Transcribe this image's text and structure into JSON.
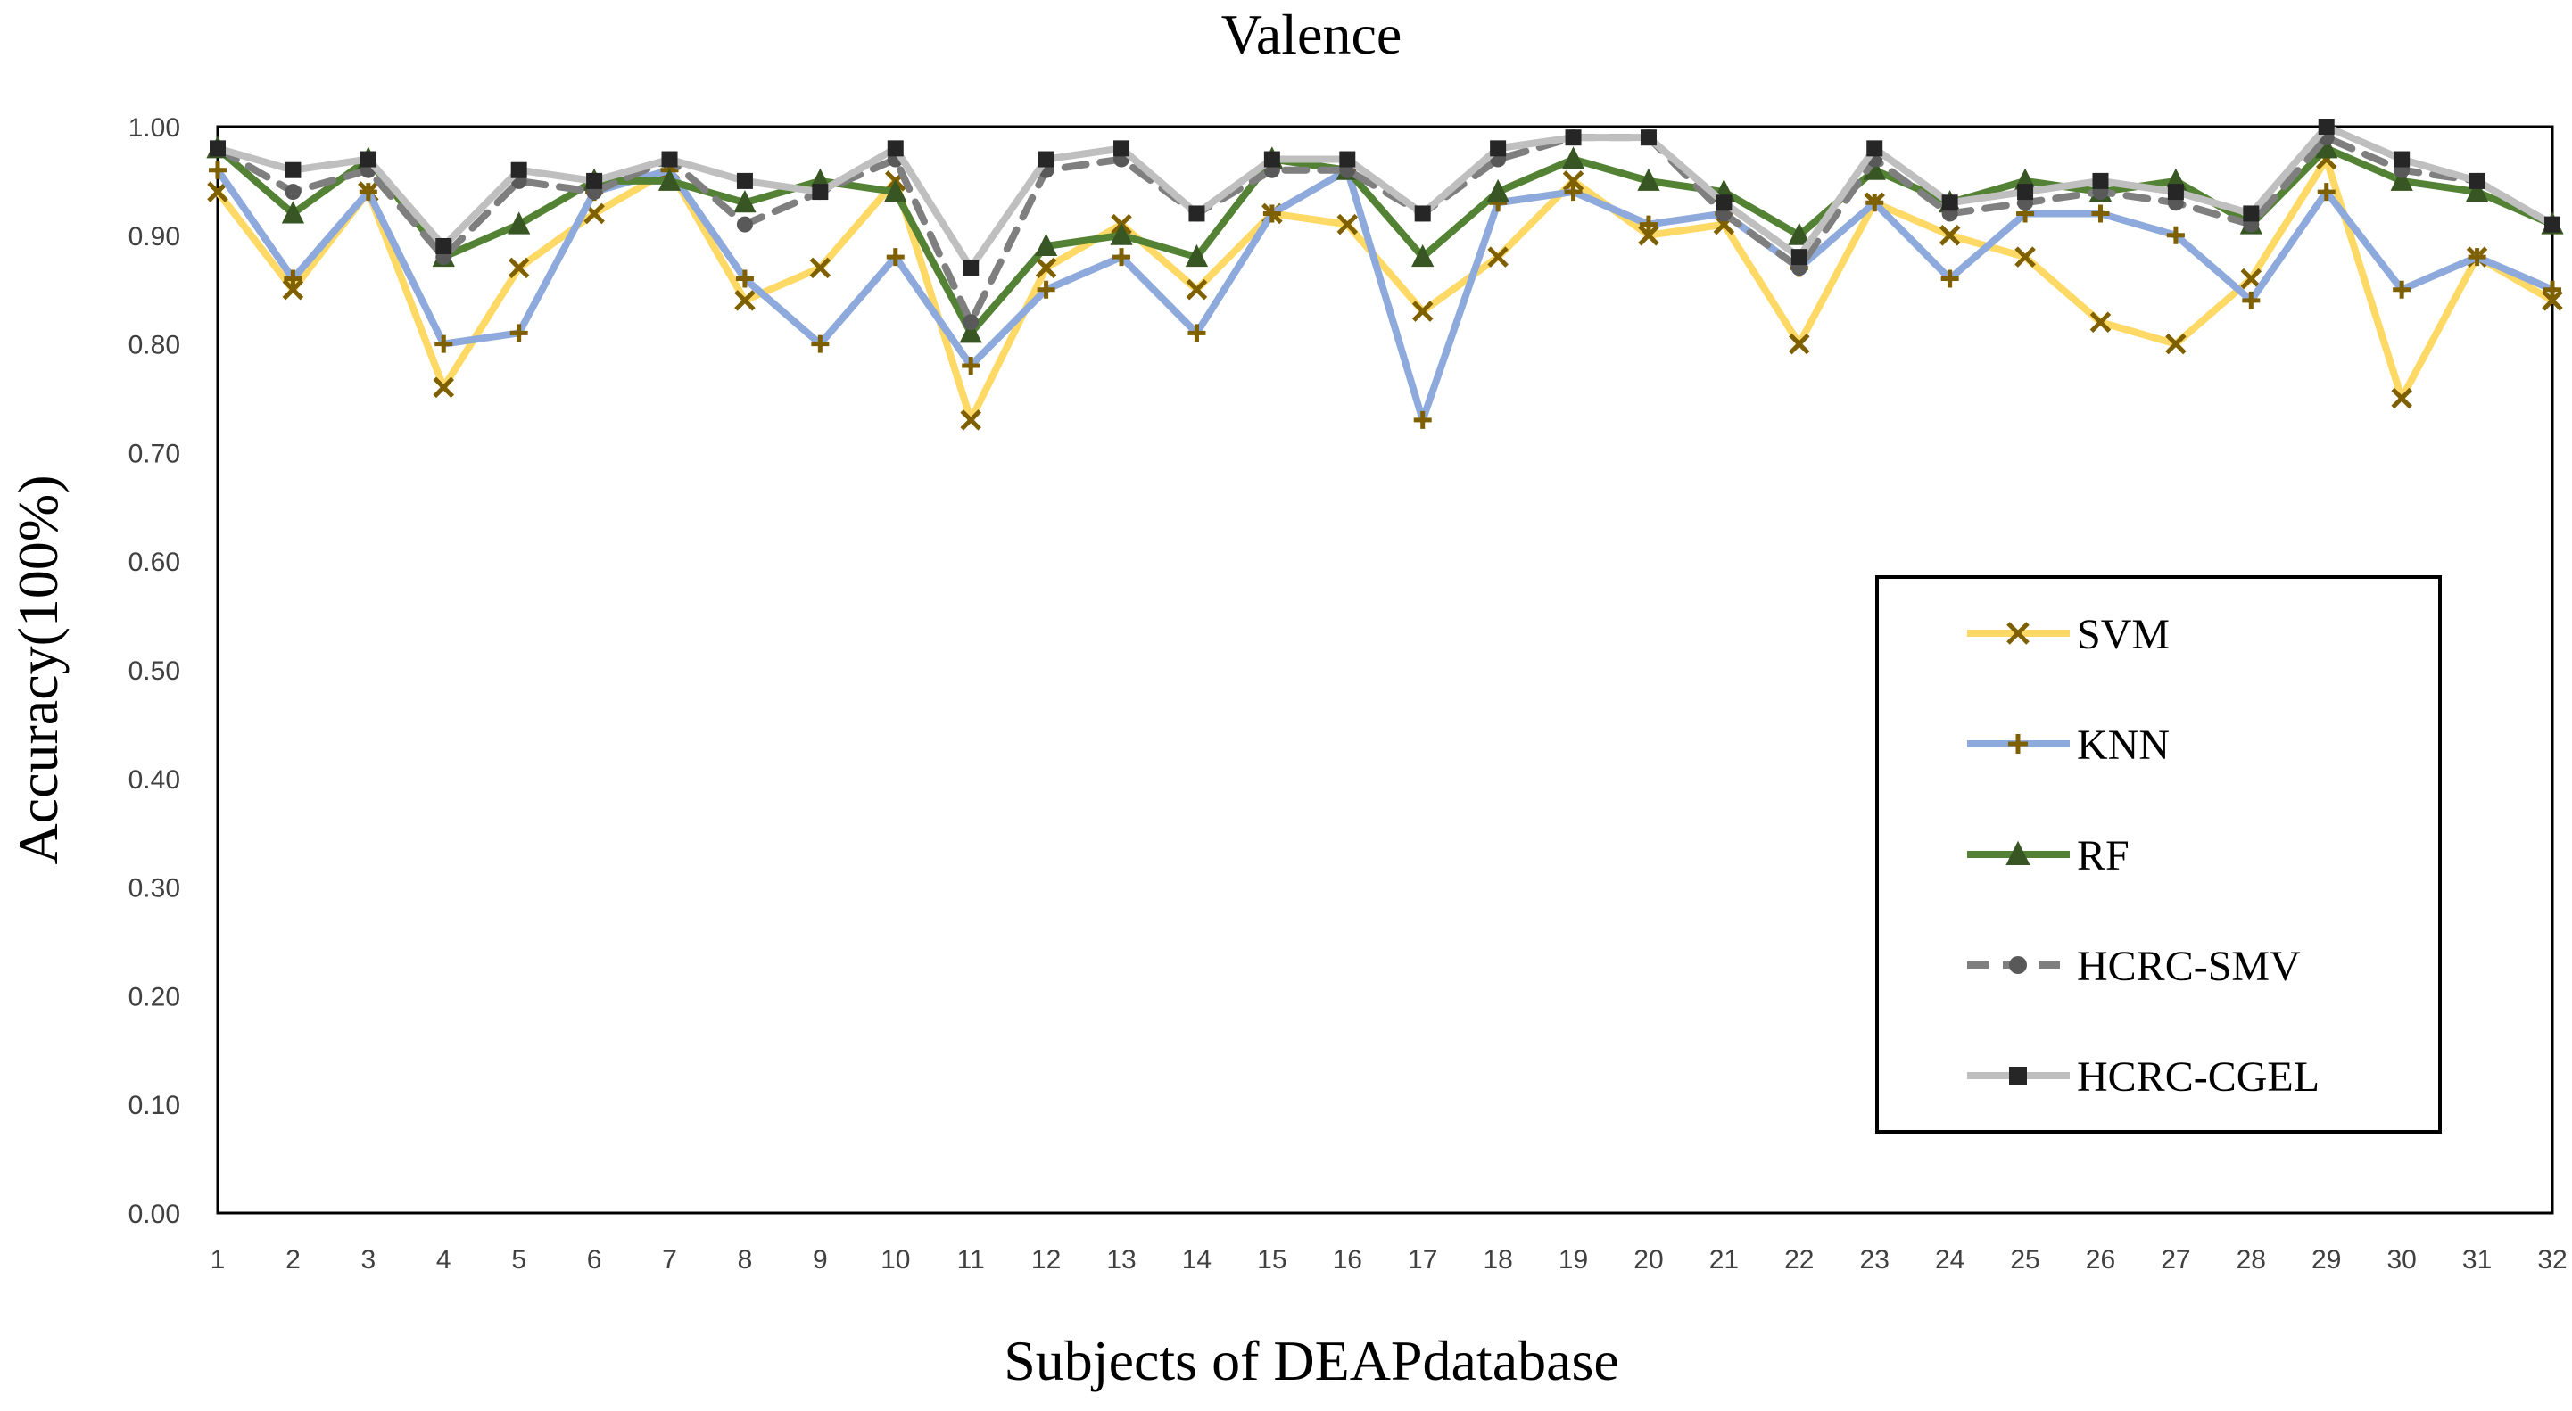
{
  "chart_data": {
    "type": "line",
    "title": "Valence",
    "xlabel": "Subjects of DEAPdatabase",
    "ylabel": "Accuracy(100%)",
    "ylim": [
      0,
      1
    ],
    "yticks": [
      "0.00",
      "0.10",
      "0.20",
      "0.30",
      "0.40",
      "0.50",
      "0.60",
      "0.70",
      "0.80",
      "0.90",
      "1.00"
    ],
    "categories": [
      "1",
      "2",
      "3",
      "4",
      "5",
      "6",
      "7",
      "8",
      "9",
      "10",
      "11",
      "12",
      "13",
      "14",
      "15",
      "16",
      "17",
      "18",
      "19",
      "20",
      "21",
      "22",
      "23",
      "24",
      "25",
      "26",
      "27",
      "28",
      "29",
      "30",
      "31",
      "32"
    ],
    "grid": false,
    "legend": "right",
    "series": [
      {
        "name": "SVM",
        "color": "#FFD966",
        "marker": "x",
        "marker_color": "#7F6000",
        "dash": false,
        "values": [
          0.94,
          0.85,
          0.94,
          0.76,
          0.87,
          0.92,
          0.96,
          0.84,
          0.87,
          0.95,
          0.73,
          0.87,
          0.91,
          0.85,
          0.92,
          0.91,
          0.83,
          0.88,
          0.95,
          0.9,
          0.91,
          0.8,
          0.93,
          0.9,
          0.88,
          0.82,
          0.8,
          0.86,
          0.97,
          0.75,
          0.88,
          0.84
        ]
      },
      {
        "name": "KNN",
        "color": "#8EA9DB",
        "marker": "plus",
        "marker_color": "#7F6000",
        "dash": false,
        "values": [
          0.96,
          0.86,
          0.94,
          0.8,
          0.81,
          0.94,
          0.96,
          0.86,
          0.8,
          0.88,
          0.78,
          0.85,
          0.88,
          0.81,
          0.92,
          0.96,
          0.73,
          0.93,
          0.94,
          0.91,
          0.92,
          0.87,
          0.93,
          0.86,
          0.92,
          0.92,
          0.9,
          0.84,
          0.94,
          0.85,
          0.88,
          0.85
        ]
      },
      {
        "name": "RF",
        "color": "#548235",
        "marker": "triangle",
        "marker_color": "#375623",
        "dash": false,
        "values": [
          0.98,
          0.92,
          0.97,
          0.88,
          0.91,
          0.95,
          0.95,
          0.93,
          0.95,
          0.94,
          0.81,
          0.89,
          0.9,
          0.88,
          0.97,
          0.96,
          0.88,
          0.94,
          0.97,
          0.95,
          0.94,
          0.9,
          0.96,
          0.93,
          0.95,
          0.94,
          0.95,
          0.91,
          0.98,
          0.95,
          0.94,
          0.91
        ]
      },
      {
        "name": "HCRC-SMV",
        "color": "#7F7F7F",
        "marker": "circle",
        "marker_color": "#595959",
        "dash": true,
        "values": [
          0.98,
          0.94,
          0.96,
          0.88,
          0.95,
          0.94,
          0.97,
          0.91,
          0.94,
          0.97,
          0.82,
          0.96,
          0.97,
          0.92,
          0.96,
          0.96,
          0.92,
          0.97,
          0.99,
          0.99,
          0.92,
          0.87,
          0.97,
          0.92,
          0.93,
          0.94,
          0.93,
          0.91,
          0.99,
          0.96,
          0.95,
          0.91
        ]
      },
      {
        "name": "HCRC-CGEL",
        "color": "#BFBFBF",
        "marker": "square",
        "marker_color": "#262626",
        "dash": false,
        "values": [
          0.98,
          0.96,
          0.97,
          0.89,
          0.96,
          0.95,
          0.97,
          0.95,
          0.94,
          0.98,
          0.87,
          0.97,
          0.98,
          0.92,
          0.97,
          0.97,
          0.92,
          0.98,
          0.99,
          0.99,
          0.93,
          0.88,
          0.98,
          0.93,
          0.94,
          0.95,
          0.94,
          0.92,
          1.0,
          0.97,
          0.95,
          0.91
        ]
      }
    ]
  }
}
